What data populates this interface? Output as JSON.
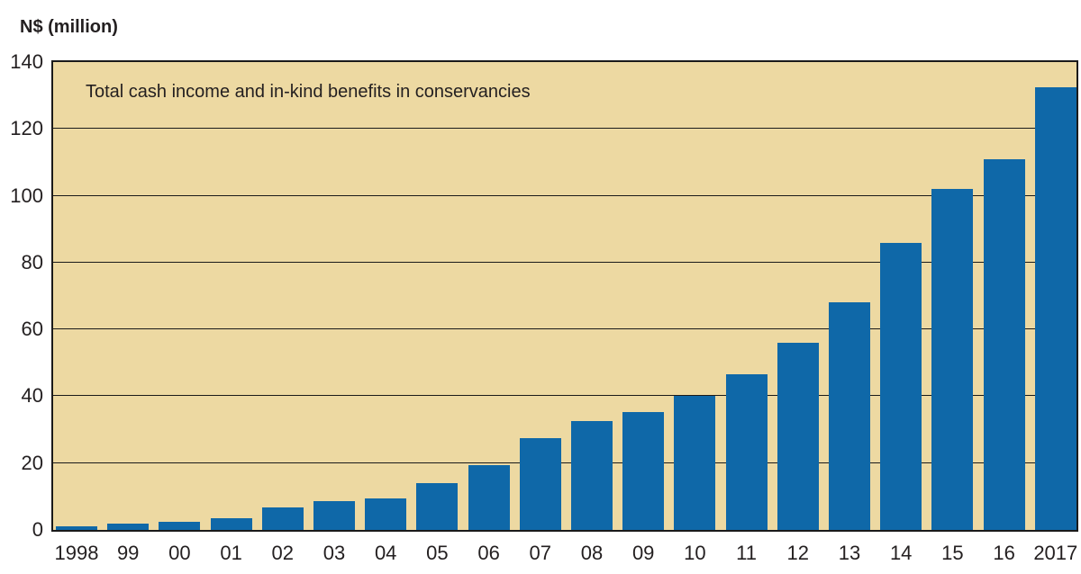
{
  "chart_data": {
    "type": "bar",
    "title": "Total cash income and in-kind benefits in conservancies",
    "ylabel": "N$ (million)",
    "xlabel": "",
    "categories": [
      "1998",
      "99",
      "00",
      "01",
      "02",
      "03",
      "04",
      "05",
      "06",
      "07",
      "08",
      "09",
      "10",
      "11",
      "12",
      "13",
      "14",
      "15",
      "16",
      "2017"
    ],
    "values": [
      1.0,
      1.8,
      2.3,
      3.6,
      6.7,
      8.5,
      9.4,
      14.0,
      19.5,
      27.6,
      32.7,
      35.2,
      40.0,
      46.5,
      56.0,
      68.2,
      86.0,
      102.0,
      111.0,
      132.5
    ],
    "ylim": [
      0,
      140
    ],
    "yticks": [
      0,
      20,
      40,
      60,
      80,
      100,
      120,
      140
    ],
    "grid": "horizontal",
    "legend": "none",
    "bar_color": "#0f68a8",
    "plot_background": "#edd9a2",
    "line_color": "#1a1a1a",
    "text_color": "#231f20"
  }
}
